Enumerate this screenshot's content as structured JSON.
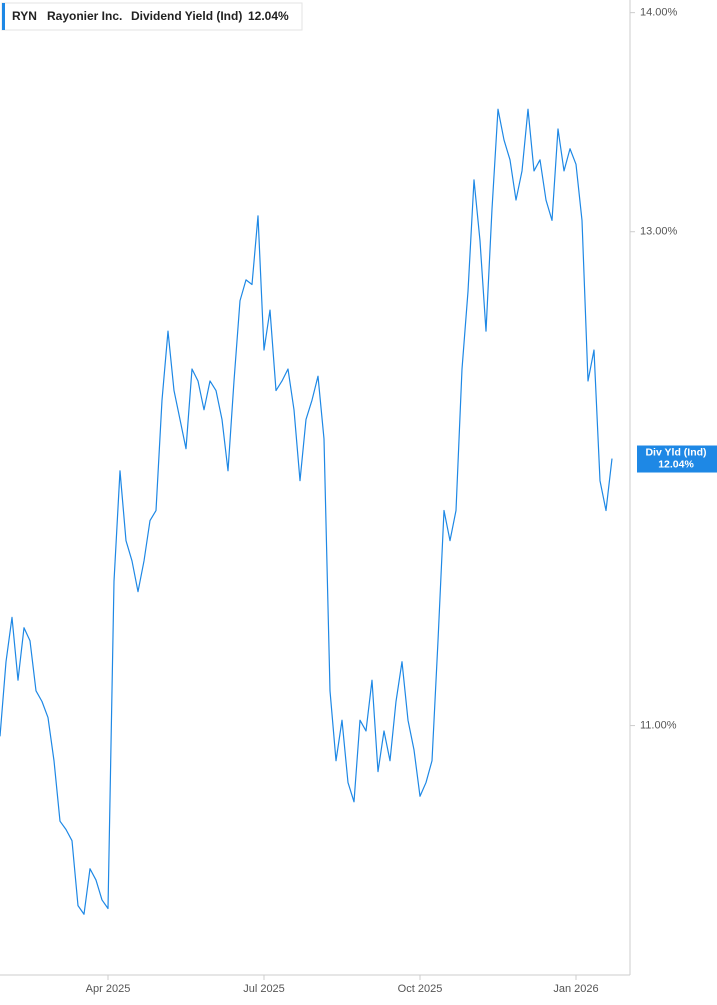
{
  "chart_data": {
    "type": "line",
    "legend": {
      "ticker": "RYN",
      "company": "Rayonier Inc.",
      "metric": "Dividend Yield (Ind)",
      "value": "12.04%"
    },
    "last_value_label": {
      "name": "Div Yld (Ind)",
      "value": "12.04%"
    },
    "categories": [
      null,
      null,
      null,
      null,
      null,
      null,
      null,
      null,
      null,
      null,
      null,
      null,
      null,
      null,
      null,
      null,
      null,
      null,
      "Apr 2025",
      null,
      null,
      null,
      null,
      null,
      null,
      null,
      null,
      null,
      null,
      null,
      null,
      null,
      null,
      null,
      null,
      null,
      null,
      null,
      null,
      null,
      null,
      null,
      null,
      null,
      "Jul 2025",
      null,
      null,
      null,
      null,
      null,
      null,
      null,
      null,
      null,
      null,
      null,
      null,
      null,
      null,
      null,
      null,
      null,
      null,
      null,
      null,
      null,
      null,
      null,
      null,
      null,
      "Oct 2025",
      null,
      null,
      null,
      null,
      null,
      null,
      null,
      null,
      null,
      null,
      null,
      null,
      null,
      null,
      null,
      null,
      null,
      null,
      null,
      null,
      null,
      null,
      null,
      null,
      null,
      "Jan 2026",
      null,
      null,
      null,
      null,
      null,
      null
    ],
    "series": [
      {
        "name": "Div Yld (Ind)",
        "color": "#1e88e5",
        "values": [
          10.96,
          11.24,
          11.41,
          11.17,
          11.37,
          11.32,
          11.13,
          11.09,
          11.03,
          10.87,
          10.65,
          10.62,
          10.58,
          10.35,
          10.32,
          10.48,
          10.44,
          10.37,
          10.34,
          11.55,
          11.99,
          11.71,
          11.63,
          11.51,
          11.63,
          11.79,
          11.83,
          12.28,
          12.57,
          12.32,
          12.2,
          12.08,
          12.41,
          12.36,
          12.24,
          12.36,
          12.32,
          12.2,
          11.99,
          12.36,
          12.7,
          12.79,
          12.77,
          13.07,
          12.49,
          12.66,
          12.32,
          12.36,
          12.41,
          12.24,
          11.95,
          12.2,
          12.28,
          12.38,
          12.12,
          11.13,
          10.87,
          11.02,
          10.79,
          10.72,
          11.02,
          10.98,
          11.17,
          10.83,
          10.98,
          10.87,
          11.09,
          11.24,
          11.02,
          10.91,
          10.74,
          10.79,
          10.87,
          11.32,
          11.83,
          11.71,
          11.83,
          12.41,
          12.74,
          13.23,
          12.96,
          12.57,
          13.1,
          13.55,
          13.41,
          13.32,
          13.14,
          13.27,
          13.55,
          13.27,
          13.32,
          13.14,
          13.05,
          13.46,
          13.27,
          13.37,
          13.3,
          13.05,
          12.36,
          12.49,
          11.95,
          11.83,
          12.04
        ]
      }
    ],
    "ylim": [
      10.11,
      14.06
    ],
    "log_scale": true,
    "yticks": [
      {
        "value": 11,
        "label": "11.00%"
      },
      {
        "value": 13,
        "label": "13.00%"
      },
      {
        "value": 14,
        "label": "14.00%"
      }
    ],
    "grid": false
  }
}
